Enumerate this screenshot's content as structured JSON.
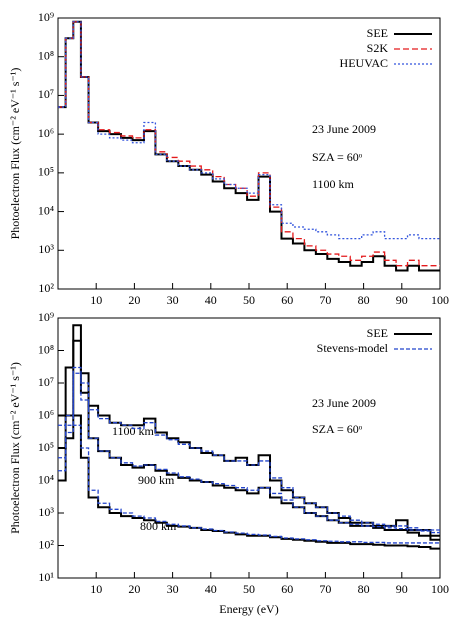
{
  "chart_data": [
    {
      "type": "step-line",
      "y_label": "Photoelectron Flux (cm⁻² eV⁻¹ s⁻¹)",
      "annotations": [
        "23 June 2009",
        "SZA = 60ᵒ",
        "1100 km"
      ],
      "x": [
        1,
        3,
        5,
        7,
        9,
        12,
        15,
        18,
        21,
        24,
        27,
        30,
        33,
        36,
        39,
        42,
        45,
        48,
        51,
        54,
        57,
        60,
        63,
        66,
        69,
        72,
        75,
        78,
        81,
        84,
        87,
        90,
        93,
        96,
        99
      ],
      "series": [
        {
          "name": "SEE",
          "color": "#000000",
          "values": [
            5000000.0,
            300000000.0,
            800000000.0,
            30000000.0,
            2000000.0,
            1200000.0,
            1000000.0,
            800000.0,
            700000.0,
            1200000.0,
            300000.0,
            200000.0,
            150000.0,
            120000.0,
            90000.0,
            60000.0,
            40000.0,
            30000.0,
            20000.0,
            80000.0,
            10000.0,
            2000.0,
            1500.0,
            1000.0,
            800,
            600,
            500,
            400,
            500,
            700,
            400,
            300,
            400,
            300,
            300
          ]
        },
        {
          "name": "S2K",
          "color": "#e41a1c",
          "values": [
            5000000.0,
            300000000.0,
            800000000.0,
            30000000.0,
            2000000.0,
            1300000.0,
            1100000.0,
            900000.0,
            800000.0,
            1300000.0,
            350000.0,
            250000.0,
            200000.0,
            150000.0,
            120000.0,
            80000.0,
            50000.0,
            40000.0,
            25000.0,
            100000.0,
            13000.0,
            3000.0,
            2000.0,
            1300.0,
            1000.0,
            800,
            700,
            550,
            700,
            900,
            550,
            400,
            550,
            400,
            400
          ]
        },
        {
          "name": "HEUVAC",
          "color": "#3355dd",
          "values": [
            5000000.0,
            300000000.0,
            800000000.0,
            30000000.0,
            2000000.0,
            1000000.0,
            800000.0,
            700000.0,
            600000.0,
            2000000.0,
            300000.0,
            200000.0,
            150000.0,
            120000.0,
            100000.0,
            70000.0,
            50000.0,
            40000.0,
            30000.0,
            90000.0,
            15000.0,
            5000.0,
            4000.0,
            3500.0,
            3000.0,
            2500.0,
            2000.0,
            2000.0,
            2500.0,
            3000.0,
            2000.0,
            2000.0,
            2500.0,
            2000.0,
            2000.0
          ]
        }
      ],
      "xlim": [
        0,
        100
      ],
      "xticks": [
        10,
        20,
        30,
        40,
        50,
        60,
        70,
        80,
        90,
        100
      ],
      "ylim": [
        100,
        1000000000
      ],
      "log_y": true,
      "yticks": [
        {
          "value": 100,
          "label": "10²"
        },
        {
          "value": 1000,
          "label": "10³"
        },
        {
          "value": 10000,
          "label": "10⁴"
        },
        {
          "value": 100000,
          "label": "10⁵"
        },
        {
          "value": 1000000,
          "label": "10⁶"
        },
        {
          "value": 10000000,
          "label": "10⁷"
        },
        {
          "value": 100000000,
          "label": "10⁸"
        },
        {
          "value": 1000000000,
          "label": "10⁹"
        }
      ]
    },
    {
      "type": "step-line",
      "x_label": "Energy (eV)",
      "y_label": "Photoelectron Flux (cm⁻² eV⁻¹ s⁻¹)",
      "annotations": [
        "23 June 2009",
        "SZA = 60ᵒ"
      ],
      "x": [
        1,
        3,
        5,
        7,
        9,
        12,
        15,
        18,
        21,
        24,
        27,
        30,
        33,
        36,
        39,
        42,
        45,
        48,
        51,
        54,
        57,
        60,
        63,
        66,
        69,
        72,
        75,
        78,
        81,
        84,
        87,
        90,
        93,
        96,
        99
      ],
      "series": [
        {
          "name": "SEE",
          "color": "#000000",
          "altitudes": [
            {
              "label": "1100 km",
              "values": [
                1000000.0,
                30000000.0,
                600000000.0,
                20000000.0,
                2000000.0,
                1000000.0,
                600000.0,
                500000.0,
                500000.0,
                800000.0,
                300000.0,
                200000.0,
                150000.0,
                100000.0,
                70000.0,
                60000.0,
                40000.0,
                50000.0,
                30000.0,
                60000.0,
                10000.0,
                5000.0,
                3000.0,
                2000.0,
                1500.0,
                1000.0,
                700,
                500,
                500,
                400,
                400,
                600,
                300,
                300,
                200
              ]
            },
            {
              "label": "900 km",
              "values": [
                100000.0,
                1000000.0,
                200000000.0,
                5000000.0,
                200000.0,
                80000.0,
                50000.0,
                30000.0,
                25000.0,
                30000.0,
                20000.0,
                15000.0,
                12000.0,
                10000.0,
                9000.0,
                7000.0,
                6000.0,
                5000.0,
                4000.0,
                6000.0,
                3000.0,
                2000.0,
                1500.0,
                1000.0,
                800,
                600,
                500,
                400,
                400,
                350,
                300,
                300,
                250,
                200,
                150
              ]
            },
            {
              "label": "800 km",
              "values": [
                10000.0,
                200000.0,
                1000000.0,
                50000.0,
                3000.0,
                1500.0,
                1000.0,
                800,
                700,
                600,
                500,
                400,
                380,
                350,
                300,
                280,
                250,
                220,
                200,
                200,
                180,
                160,
                150,
                140,
                130,
                120,
                120,
                110,
                110,
                105,
                100,
                100,
                95,
                90,
                80
              ]
            }
          ]
        },
        {
          "name": "Stevens-model",
          "color": "#2244cc",
          "altitudes": [
            {
              "values": [
                500000.0,
                1000000.0,
                30000000.0,
                10000000.0,
                1500000.0,
                800000.0,
                600000.0,
                500000.0,
                400000.0,
                600000.0,
                250000.0,
                180000.0,
                130000.0,
                100000.0,
                80000.0,
                60000.0,
                40000.0,
                40000.0,
                30000.0,
                40000.0,
                12000.0,
                6000.0,
                3000.0,
                2000.0,
                1500.0,
                1000.0,
                800,
                600,
                500,
                450,
                400,
                400,
                350,
                300,
                300
              ]
            },
            {
              "values": [
                50000.0,
                500000.0,
                20000000.0,
                3000000.0,
                200000.0,
                80000.0,
                50000.0,
                35000.0,
                28000.0,
                30000.0,
                22000.0,
                17000.0,
                13000.0,
                11000.0,
                9000.0,
                8000.0,
                7000.0,
                6000.0,
                5000.0,
                6000.0,
                4000.0,
                2500.0,
                1500.0,
                1000.0,
                800,
                600,
                500,
                450,
                400,
                380,
                350,
                330,
                300,
                280,
                250
              ]
            },
            {
              "values": [
                20000.0,
                300000.0,
                500000.0,
                100000.0,
                5000.0,
                2000.0,
                1300.0,
                1000.0,
                800,
                700,
                550,
                450,
                400,
                350,
                320,
                290,
                260,
                240,
                220,
                210,
                190,
                170,
                160,
                150,
                140,
                135,
                130,
                130,
                125,
                125,
                120,
                120,
                120,
                120,
                120
              ]
            }
          ]
        }
      ],
      "xlim": [
        0,
        100
      ],
      "xticks": [
        10,
        20,
        30,
        40,
        50,
        60,
        70,
        80,
        90,
        100
      ],
      "ylim": [
        10,
        1000000000
      ],
      "log_y": true,
      "yticks": [
        {
          "value": 10,
          "label": "10¹"
        },
        {
          "value": 100,
          "label": "10²"
        },
        {
          "value": 1000,
          "label": "10³"
        },
        {
          "value": 10000,
          "label": "10⁴"
        },
        {
          "value": 100000,
          "label": "10⁵"
        },
        {
          "value": 1000000,
          "label": "10⁶"
        },
        {
          "value": 10000000,
          "label": "10⁷"
        },
        {
          "value": 100000000,
          "label": "10⁸"
        },
        {
          "value": 1000000000,
          "label": "10⁹"
        }
      ]
    }
  ]
}
